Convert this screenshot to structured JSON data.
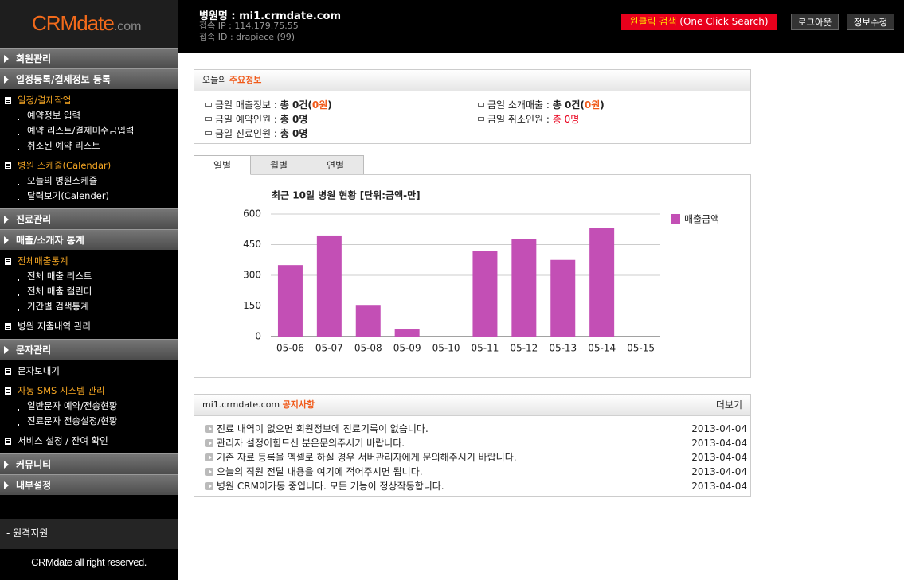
{
  "logo": {
    "brand": "CRMdate",
    "domain": ".com"
  },
  "header": {
    "hospital": "병원명 : mi1.crmdate.com",
    "ip": "접속 IP : 114.179.75.55",
    "login_id": "접속 ID : drapiece (99)",
    "search": {
      "label": "원클릭 검색",
      "sub": "(One Click Search)"
    },
    "buttons": [
      "로그아웃",
      "정보수정"
    ]
  },
  "menu": [
    {
      "title": "회원관리"
    },
    {
      "title": "일정등록/결제정보 등록",
      "groups": [
        {
          "title": "일정/결제작업",
          "highlight": true,
          "items": [
            "예약정보 입력",
            "예약 리스트/결제미수금입력",
            "취소된 예약 리스트"
          ]
        },
        {
          "title": "병원 스케줄(Calendar)",
          "highlight": true,
          "items": [
            "오늘의 병원스케쥴",
            "달력보기(Calender)"
          ]
        }
      ]
    },
    {
      "title": "진료관리"
    },
    {
      "title": "매출/소개자 통계",
      "groups": [
        {
          "title": "전체매출통계",
          "highlight": true,
          "items": [
            "전체 매출 리스트",
            "전체 매출 캘린더",
            "기간별 검색통계"
          ]
        },
        {
          "title": "병원 지출내역 관리",
          "highlight": false
        }
      ]
    },
    {
      "title": "문자관리",
      "groups": [
        {
          "title": "문자보내기",
          "highlight": false
        },
        {
          "title": "자동 SMS 시스템 관리",
          "highlight": true,
          "items": [
            "일반문자 예약/전송현황",
            "진료문자 전송설정/현황"
          ]
        },
        {
          "title": "서비스 설정 / 잔여 확인",
          "highlight": false
        }
      ]
    },
    {
      "title": "커뮤니티"
    },
    {
      "title": "내부설정"
    }
  ],
  "remote": "- 원격지원",
  "copyright": "CRMdate all right reserved.",
  "summary": {
    "title": {
      "lead": "오늘의",
      "accent": "주요정보"
    },
    "items": [
      {
        "parts": [
          {
            "text": "금일 매출정보 :",
            "style": "normal"
          },
          {
            "text": "총 0건(",
            "style": "bold"
          },
          {
            "text": "0원",
            "style": "orange"
          },
          {
            "text": ")",
            "style": "bold"
          }
        ]
      },
      {
        "parts": [
          {
            "text": "금일 소개매출 :",
            "style": "normal"
          },
          {
            "text": "총 0건(",
            "style": "bold"
          },
          {
            "text": "0원",
            "style": "orange"
          },
          {
            "text": ")",
            "style": "bold"
          }
        ]
      },
      {
        "parts": [
          {
            "text": "금일 예약인원 :",
            "style": "normal"
          },
          {
            "text": "총 0명",
            "style": "bold"
          }
        ]
      },
      {
        "parts": [
          {
            "text": "금일 취소인원 :",
            "style": "normal"
          },
          {
            "text": "총 0명",
            "style": "red"
          }
        ]
      },
      {
        "parts": [
          {
            "text": "금일 진료인원 :",
            "style": "normal"
          },
          {
            "text": "총 0명",
            "style": "bold"
          }
        ]
      }
    ]
  },
  "tabs": {
    "labels": [
      "일별",
      "월별",
      "연별"
    ],
    "active": 0
  },
  "chart_data": {
    "type": "bar",
    "title": "최근 10일 병원 현황 [단위:금액-만]",
    "categories": [
      "05-06",
      "05-07",
      "05-08",
      "05-09",
      "05-10",
      "05-11",
      "05-12",
      "05-13",
      "05-14",
      "05-15"
    ],
    "series": [
      {
        "name": "매출금액",
        "color": "#c34fb5",
        "values": [
          350,
          495,
          155,
          35,
          0,
          420,
          478,
          375,
          530,
          0
        ]
      }
    ],
    "ylim": [
      0,
      600
    ],
    "yticks": [
      0,
      150,
      300,
      450,
      600
    ],
    "grid": true,
    "legend": "right"
  },
  "notice": {
    "title": {
      "site": "mi1.crmdate.com",
      "accent": "공지사항"
    },
    "more": "더보기",
    "items": [
      {
        "text": "진료 내역이 없으면 회원정보에 진료기록이 없습니다.",
        "date": "2013-04-04"
      },
      {
        "text": "관리자 설정이힘드신 분은문의주시기 바랍니다.",
        "date": "2013-04-04"
      },
      {
        "text": "기존 자료 등록을 엑셀로 하실 경우 서버관리자에게 문의해주시기 바랍니다.",
        "date": "2013-04-04"
      },
      {
        "text": "오늘의 직원 전달 내용을 여기에 적어주시면 됩니다.",
        "date": "2013-04-04"
      },
      {
        "text": "병원 CRM이가동 중입니다. 모든 기능이 정상작동합니다.",
        "date": "2013-04-04"
      }
    ]
  }
}
